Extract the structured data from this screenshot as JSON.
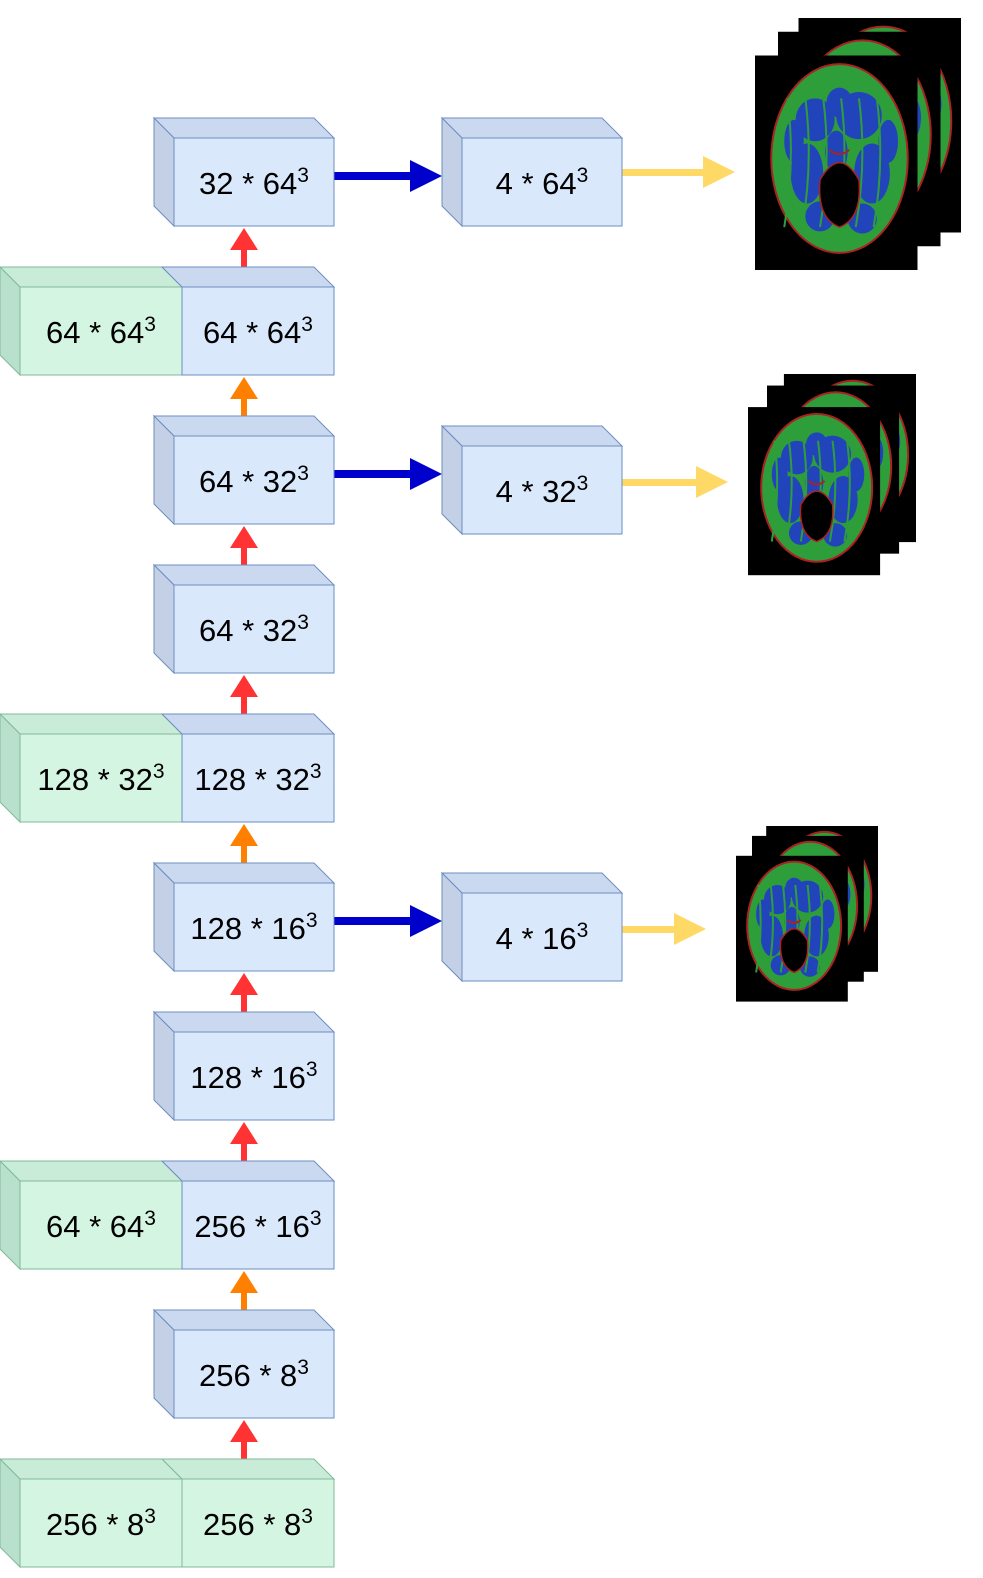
{
  "colors": {
    "blue_box_front": "#dae8fc",
    "blue_box_side": "#c3d0e6",
    "blue_box_top": "#cbd9f0",
    "green_box_front": "#d5f5e3",
    "green_box_side": "#b9e0cc",
    "green_box_top": "#c8ecd8",
    "box_stroke": "#6c8ebf",
    "red_arrow": "#ff3333",
    "orange_arrow": "#ff8000",
    "blue_arrow": "#0000cc",
    "yellow_arrow": "#ffd966",
    "brain_green": "#2e9e3a",
    "brain_blue": "#2244bb",
    "brain_red": "#aa2222"
  },
  "blocks": [
    {
      "id": "b1",
      "base": "32 * 64",
      "exp": "3"
    },
    {
      "id": "b2-skip",
      "base": "64 * 64",
      "exp": "3"
    },
    {
      "id": "b2",
      "base": "64 * 64",
      "exp": "3"
    },
    {
      "id": "b3",
      "base": "64 * 32",
      "exp": "3"
    },
    {
      "id": "b4",
      "base": "64 * 32",
      "exp": "3"
    },
    {
      "id": "b5-skip",
      "base": "128 * 32",
      "exp": "3"
    },
    {
      "id": "b5",
      "base": "128 * 32",
      "exp": "3"
    },
    {
      "id": "b6",
      "base": "128 * 16",
      "exp": "3"
    },
    {
      "id": "b7",
      "base": "128 * 16",
      "exp": "3"
    },
    {
      "id": "b8-skip",
      "base": "64 * 64",
      "exp": "3"
    },
    {
      "id": "b8",
      "base": "256 * 16",
      "exp": "3"
    },
    {
      "id": "b9",
      "base": "256 * 8",
      "exp": "3"
    },
    {
      "id": "b10-skip",
      "base": "256 * 8",
      "exp": "3"
    },
    {
      "id": "b10",
      "base": "256 * 8",
      "exp": "3"
    }
  ],
  "outputs": [
    {
      "id": "o1",
      "base": "4 * 64",
      "exp": "3"
    },
    {
      "id": "o2",
      "base": "4 * 32",
      "exp": "3"
    },
    {
      "id": "o3",
      "base": "4 * 16",
      "exp": "3"
    }
  ],
  "arrows": [
    {
      "from": "b2",
      "to": "b1",
      "kind": "red"
    },
    {
      "from": "b3",
      "to": "b2",
      "kind": "orange"
    },
    {
      "from": "b4",
      "to": "b3",
      "kind": "red"
    },
    {
      "from": "b5",
      "to": "b4",
      "kind": "red"
    },
    {
      "from": "b6",
      "to": "b5",
      "kind": "orange"
    },
    {
      "from": "b7",
      "to": "b6",
      "kind": "red"
    },
    {
      "from": "b8",
      "to": "b7",
      "kind": "red"
    },
    {
      "from": "b9",
      "to": "b8",
      "kind": "orange"
    },
    {
      "from": "b10",
      "to": "b9",
      "kind": "red"
    },
    {
      "from": "b1",
      "to": "o1",
      "kind": "blue"
    },
    {
      "from": "b3",
      "to": "o2",
      "kind": "blue"
    },
    {
      "from": "b6",
      "to": "o3",
      "kind": "blue"
    },
    {
      "from": "o1",
      "to": "img1",
      "kind": "yellow"
    },
    {
      "from": "o2",
      "to": "img2",
      "kind": "yellow"
    },
    {
      "from": "o3",
      "to": "img3",
      "kind": "yellow"
    }
  ],
  "images": [
    {
      "id": "img1",
      "description": "brain-segmentation-stack-icon"
    },
    {
      "id": "img2",
      "description": "brain-segmentation-stack-icon"
    },
    {
      "id": "img3",
      "description": "brain-segmentation-stack-icon"
    }
  ]
}
